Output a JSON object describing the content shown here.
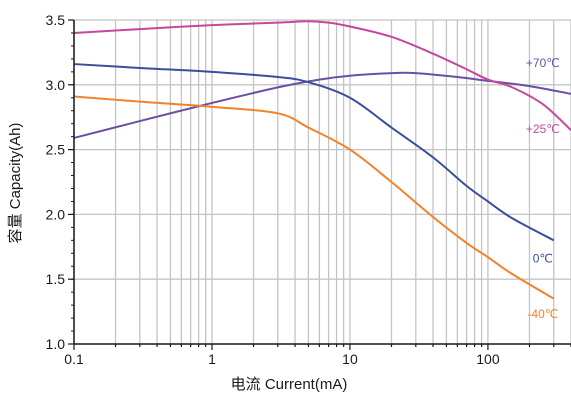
{
  "chart_data": {
    "type": "line",
    "xlabel": "电流 Current(mA)",
    "ylabel": "容量 Capacity(Ah)",
    "x_scale": "log",
    "xlim": [
      0.1,
      400
    ],
    "ylim": [
      1.0,
      3.5
    ],
    "x_ticks": [
      0.1,
      1,
      10,
      100
    ],
    "x_tick_labels": [
      "0.1",
      "1",
      "10",
      "100"
    ],
    "y_ticks": [
      1.0,
      1.5,
      2.0,
      2.5,
      3.0,
      3.5
    ],
    "y_tick_labels": [
      "1.0",
      "1.5",
      "2.0",
      "2.5",
      "3.0",
      "3.5"
    ],
    "grid": true,
    "series": [
      {
        "name": "+70℃",
        "color": "#6b4fa6",
        "points": [
          [
            0.1,
            2.59
          ],
          [
            0.3,
            2.72
          ],
          [
            1,
            2.86
          ],
          [
            3,
            2.98
          ],
          [
            6,
            3.04
          ],
          [
            10,
            3.07
          ],
          [
            20,
            3.09
          ],
          [
            30,
            3.09
          ],
          [
            60,
            3.06
          ],
          [
            100,
            3.03
          ],
          [
            200,
            2.99
          ],
          [
            400,
            2.93
          ]
        ]
      },
      {
        "name": "+25℃",
        "color": "#c5479e",
        "points": [
          [
            0.1,
            3.4
          ],
          [
            0.3,
            3.43
          ],
          [
            1,
            3.46
          ],
          [
            3,
            3.48
          ],
          [
            5,
            3.49
          ],
          [
            7,
            3.48
          ],
          [
            10,
            3.45
          ],
          [
            20,
            3.37
          ],
          [
            40,
            3.24
          ],
          [
            70,
            3.12
          ],
          [
            100,
            3.04
          ],
          [
            150,
            2.98
          ],
          [
            250,
            2.85
          ],
          [
            400,
            2.65
          ]
        ]
      },
      {
        "name": "0℃",
        "color": "#3a4f9c",
        "points": [
          [
            0.1,
            3.16
          ],
          [
            0.3,
            3.13
          ],
          [
            1,
            3.1
          ],
          [
            3,
            3.06
          ],
          [
            5,
            3.02
          ],
          [
            10,
            2.9
          ],
          [
            20,
            2.67
          ],
          [
            40,
            2.44
          ],
          [
            70,
            2.22
          ],
          [
            100,
            2.1
          ],
          [
            150,
            1.97
          ],
          [
            300,
            1.8
          ]
        ]
      },
      {
        "name": "-40℃",
        "color": "#f0832a",
        "points": [
          [
            0.1,
            2.91
          ],
          [
            0.3,
            2.87
          ],
          [
            1,
            2.83
          ],
          [
            3,
            2.78
          ],
          [
            5,
            2.67
          ],
          [
            10,
            2.5
          ],
          [
            20,
            2.25
          ],
          [
            40,
            1.98
          ],
          [
            70,
            1.78
          ],
          [
            100,
            1.67
          ],
          [
            150,
            1.54
          ],
          [
            300,
            1.35
          ]
        ]
      }
    ],
    "labels": [
      {
        "text": "+70℃",
        "series": 0,
        "x": 250,
        "y": 3.17
      },
      {
        "text": "+25℃",
        "series": 1,
        "x": 250,
        "y": 2.66
      },
      {
        "text": "0℃",
        "series": 2,
        "x": 250,
        "y": 1.66
      },
      {
        "text": "-40℃",
        "series": 3,
        "x": 250,
        "y": 1.23
      }
    ]
  }
}
